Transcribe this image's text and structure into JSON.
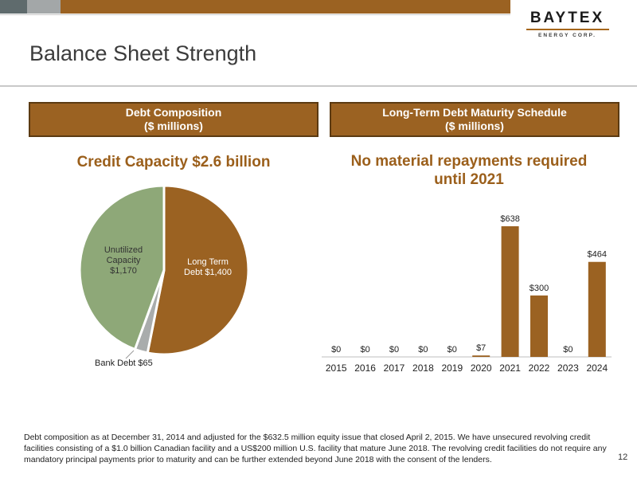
{
  "header": {
    "title": "Balance Sheet Strength",
    "logo": {
      "name": "BAYTEX",
      "tagline": "ENERGY CORP."
    },
    "page_number": "12",
    "colors": {
      "bar_gray_dark": "#5f6b6d",
      "bar_gray_light": "#a3a7a8",
      "bar_brown": "#9b6222"
    }
  },
  "left_panel": {
    "box_line1": "Debt Composition",
    "box_line2": "($ millions)",
    "heading": "Credit Capacity $2.6 billion"
  },
  "right_panel": {
    "box_line1": "Long-Term Debt Maturity Schedule",
    "box_line2": "($ millions)",
    "heading_line1": "No material repayments required",
    "heading_line2": "until 2021"
  },
  "chart_data": [
    {
      "type": "pie",
      "slices": [
        {
          "label_line1": "Long Term",
          "label_line2": "Debt $1,400",
          "value": 1400,
          "color": "#9b6222"
        },
        {
          "label_line1": "Bank Debt $65",
          "value": 65,
          "color": "#a9acac"
        },
        {
          "label_line1": "Unutilized",
          "label_line2": "Capacity",
          "label_line3": "$1,170",
          "value": 1170,
          "color": "#8ea878"
        }
      ]
    },
    {
      "type": "bar",
      "categories": [
        "2015",
        "2016",
        "2017",
        "2018",
        "2019",
        "2020",
        "2021",
        "2022",
        "2023",
        "2024"
      ],
      "values": [
        0,
        0,
        0,
        0,
        0,
        7,
        638,
        300,
        0,
        464
      ],
      "data_labels": [
        "$0",
        "$0",
        "$0",
        "$0",
        "$0",
        "$7",
        "$638",
        "$300",
        "$0",
        "$464"
      ],
      "ylim": [
        0,
        638
      ],
      "color": "#9b6222"
    }
  ],
  "footnote": "Debt composition as at December 31, 2014 and adjusted for the $632.5 million equity issue that closed April 2, 2015. We have unsecured revolving credit facilities consisting of a $1.0 billion Canadian facility and a US$200 million U.S. facility that mature June 2018. The revolving credit facilities do not require any mandatory principal payments prior to maturity and can be further extended beyond June 2018 with the consent of the lenders."
}
